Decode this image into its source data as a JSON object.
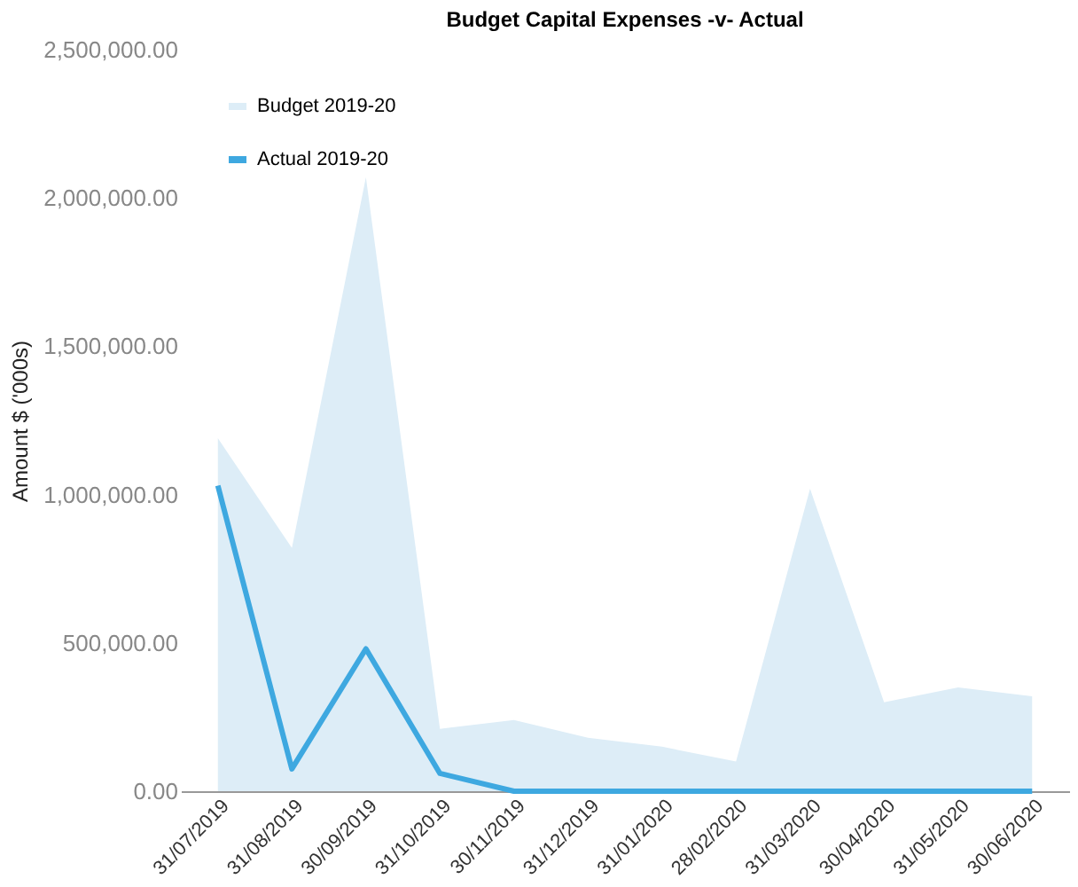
{
  "chart_data": {
    "type": "area",
    "title": "Budget Capital Expenses -v- Actual",
    "ylabel": "Amount $ ('000s)",
    "categories": [
      "31/07/2019",
      "31/08/2019",
      "30/09/2019",
      "31/10/2019",
      "30/11/2019",
      "31/12/2019",
      "31/01/2020",
      "28/02/2020",
      "31/03/2020",
      "30/04/2020",
      "31/05/2020",
      "30/06/2020"
    ],
    "series": [
      {
        "name": "Budget 2019-20",
        "color": "#ddedf7",
        "values": [
          1190000,
          820000,
          2070000,
          210000,
          240000,
          180000,
          150000,
          100000,
          1020000,
          300000,
          350000,
          320000
        ]
      },
      {
        "name": "Actual 2019-20",
        "type": "line",
        "color": "#3ea8e0",
        "values": [
          1030000,
          75000,
          480000,
          60000,
          0,
          0,
          0,
          0,
          0,
          0,
          0,
          0
        ]
      }
    ],
    "ylim": [
      0,
      2500000
    ],
    "yticks": [
      {
        "value": 0,
        "label": "0.00"
      },
      {
        "value": 500000,
        "label": "500,000.00"
      },
      {
        "value": 1000000,
        "label": "1,000,000.00"
      },
      {
        "value": 1500000,
        "label": "1,500,000.00"
      },
      {
        "value": 2000000,
        "label": "2,000,000.00"
      },
      {
        "value": 2500000,
        "label": "2,500,000.00"
      }
    ],
    "grid": false,
    "legend": "top left",
    "marker": "none",
    "line_style": "solid"
  }
}
